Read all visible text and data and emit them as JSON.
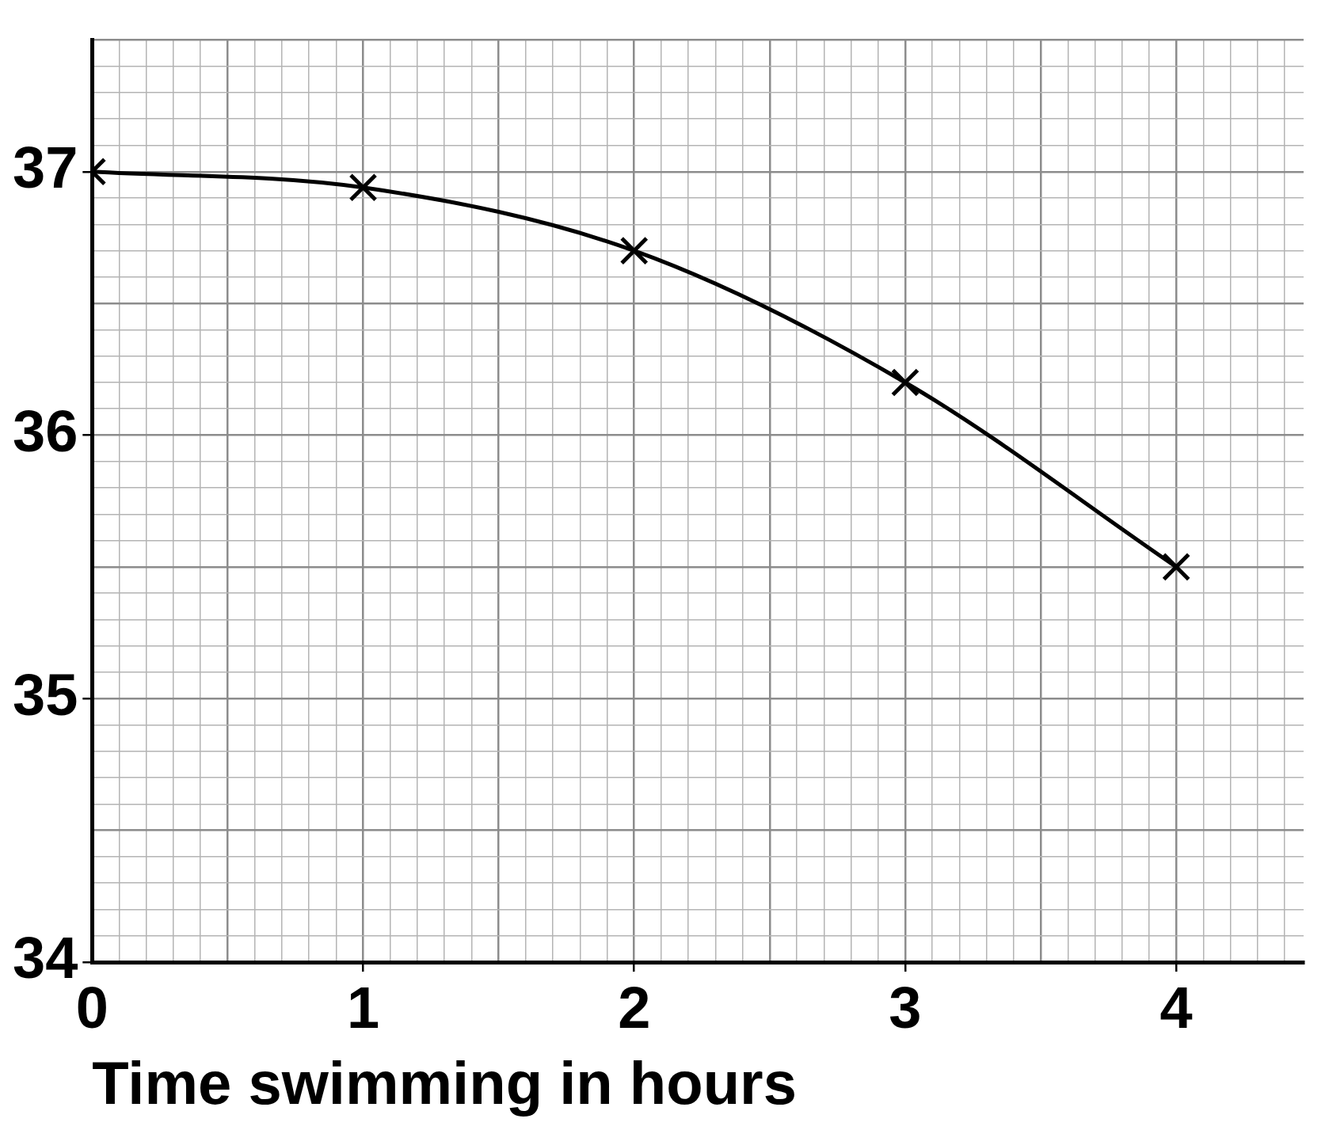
{
  "chart_data": {
    "type": "line",
    "xlabel": "Time swimming in hours",
    "x": [
      0,
      1,
      2,
      3,
      4
    ],
    "series": [
      {
        "color": "#000000",
        "values": [
          37.0,
          36.94,
          36.7,
          36.2,
          35.5
        ]
      }
    ],
    "marker": "cross",
    "grid": true,
    "legend": false,
    "xlim": [
      0,
      4.47
    ],
    "ylim": [
      34,
      37.5
    ],
    "xticks": [
      0,
      {
        "value": 0.1,
        "label": null
      },
      {
        "value": 0.2,
        "label": null
      },
      {
        "value": 0.3,
        "label": null
      },
      {
        "value": 0.4,
        "label": null
      },
      {
        "value": 0.5,
        "label": null
      },
      {
        "value": 0.6,
        "label": null
      },
      {
        "value": 0.7,
        "label": null
      },
      {
        "value": 0.8,
        "label": null
      },
      {
        "value": 0.9,
        "label": null
      },
      1,
      {
        "value": 1.1,
        "label": null
      },
      {
        "value": 1.2,
        "label": null
      },
      {
        "value": 1.3,
        "label": null
      },
      {
        "value": 1.4,
        "label": null
      },
      {
        "value": 1.5,
        "label": null
      },
      {
        "value": 1.6,
        "label": null
      },
      {
        "value": 1.7,
        "label": null
      },
      {
        "value": 1.8,
        "label": null
      },
      {
        "value": 1.9,
        "label": null
      },
      2,
      {
        "value": 2.1,
        "label": null
      },
      {
        "value": 2.2,
        "label": null
      },
      {
        "value": 2.3,
        "label": null
      },
      {
        "value": 2.4,
        "label": null
      },
      {
        "value": 2.5,
        "label": null
      },
      {
        "value": 2.6,
        "label": null
      },
      {
        "value": 2.7,
        "label": null
      },
      {
        "value": 2.8,
        "label": null
      },
      {
        "value": 2.9,
        "label": null
      },
      3,
      {
        "value": 3.1,
        "label": null
      },
      {
        "value": 3.2,
        "label": null
      },
      {
        "value": 3.3,
        "label": null
      },
      {
        "value": 3.4,
        "label": null
      },
      {
        "value": 3.5,
        "label": null
      },
      {
        "value": 3.6,
        "label": null
      },
      {
        "value": 3.7,
        "label": null
      },
      {
        "value": 3.8,
        "label": null
      },
      {
        "value": 3.9,
        "label": null
      },
      4,
      {
        "value": 4.1,
        "label": null
      },
      {
        "value": 4.2,
        "label": null
      },
      {
        "value": 4.3,
        "label": null
      },
      {
        "value": 4.4,
        "label": null
      }
    ],
    "yticks": [
      34,
      {
        "value": 34.1,
        "label": null
      },
      {
        "value": 34.2,
        "label": null
      },
      {
        "value": 34.3,
        "label": null
      },
      {
        "value": 34.4,
        "label": null
      },
      {
        "value": 34.5,
        "label": null
      },
      {
        "value": 34.6,
        "label": null
      },
      {
        "value": 34.7,
        "label": null
      },
      {
        "value": 34.8,
        "label": null
      },
      {
        "value": 34.9,
        "label": null
      },
      35,
      {
        "value": 35.1,
        "label": null
      },
      {
        "value": 35.2,
        "label": null
      },
      {
        "value": 35.3,
        "label": null
      },
      {
        "value": 35.4,
        "label": null
      },
      {
        "value": 35.5,
        "label": null
      },
      {
        "value": 35.6,
        "label": null
      },
      {
        "value": 35.7,
        "label": null
      },
      {
        "value": 35.8,
        "label": null
      },
      {
        "value": 35.9,
        "label": null
      },
      36,
      {
        "value": 36.1,
        "label": null
      },
      {
        "value": 36.2,
        "label": null
      },
      {
        "value": 36.3,
        "label": null
      },
      {
        "value": 36.4,
        "label": null
      },
      {
        "value": 36.5,
        "label": null
      },
      {
        "value": 36.6,
        "label": null
      },
      {
        "value": 36.7,
        "label": null
      },
      {
        "value": 36.8,
        "label": null
      },
      {
        "value": 36.9,
        "label": null
      },
      37,
      {
        "value": 37.1,
        "label": null
      },
      {
        "value": 37.2,
        "label": null
      },
      {
        "value": 37.3,
        "label": null
      },
      {
        "value": 37.4,
        "label": null
      },
      {
        "value": 37.5,
        "label": null
      }
    ]
  }
}
